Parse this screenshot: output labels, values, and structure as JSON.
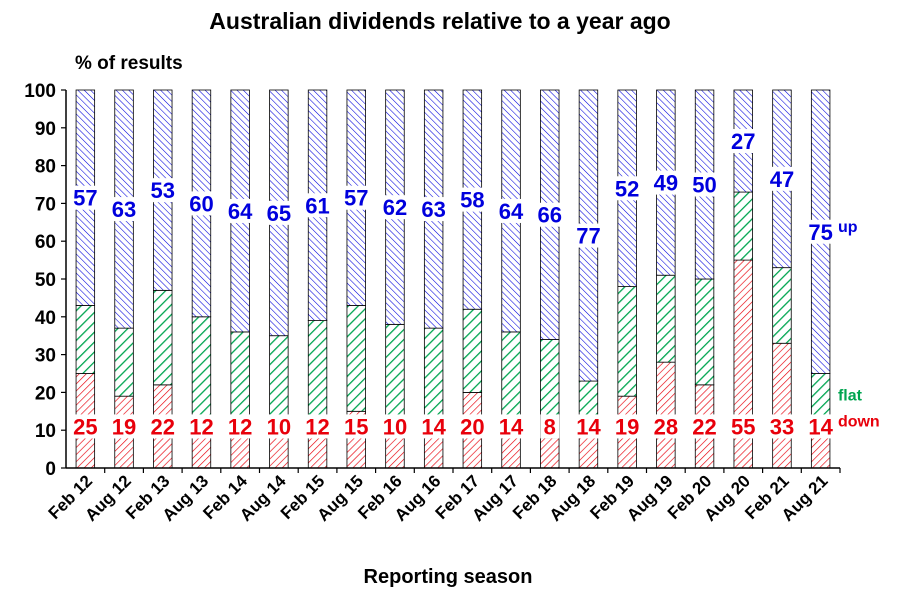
{
  "chart_data": {
    "type": "bar",
    "stacked": true,
    "title": "Australian dividends relative to a year ago",
    "ylabel": "% of results",
    "xlabel": "Reporting season",
    "ylim": [
      0,
      100
    ],
    "yticks": [
      0,
      10,
      20,
      30,
      40,
      50,
      60,
      70,
      80,
      90,
      100
    ],
    "categories": [
      "Feb 12",
      "Aug 12",
      "Feb 13",
      "Aug 13",
      "Feb 14",
      "Aug 14",
      "Feb 15",
      "Aug 15",
      "Feb 16",
      "Aug 16",
      "Feb 17",
      "Aug 17",
      "Feb 18",
      "Aug 18",
      "Feb 19",
      "Aug 19",
      "Feb 20",
      "Aug 20",
      "Feb 21",
      "Aug 21"
    ],
    "series": [
      {
        "name": "down",
        "color": "#e8000b",
        "values": [
          25,
          19,
          22,
          12,
          12,
          10,
          12,
          15,
          10,
          14,
          20,
          14,
          8,
          14,
          19,
          28,
          22,
          55,
          33,
          14
        ]
      },
      {
        "name": "flat",
        "color": "#00a550",
        "values": [
          18,
          18,
          25,
          28,
          24,
          25,
          27,
          28,
          28,
          23,
          22,
          22,
          26,
          9,
          29,
          23,
          28,
          18,
          20,
          11
        ]
      },
      {
        "name": "up",
        "color": "#0000dd",
        "values": [
          57,
          63,
          53,
          60,
          64,
          65,
          61,
          57,
          62,
          63,
          58,
          64,
          66,
          77,
          52,
          49,
          50,
          27,
          47,
          75
        ]
      }
    ],
    "data_labels": {
      "down": [
        "25",
        "19",
        "22",
        "12",
        "12",
        "10",
        "12",
        "15",
        "10",
        "14",
        "20",
        "14",
        "8",
        "14",
        "19",
        "28",
        "22",
        "55",
        "33",
        "14"
      ],
      "up": [
        "57",
        "63",
        "53",
        "60",
        "64",
        "65",
        "61",
        "57",
        "62",
        "63",
        "58",
        "64",
        "66",
        "77",
        "52",
        "49",
        "50",
        "27",
        "47",
        "75"
      ]
    },
    "legend_position": "right-inline",
    "grid": false
  }
}
